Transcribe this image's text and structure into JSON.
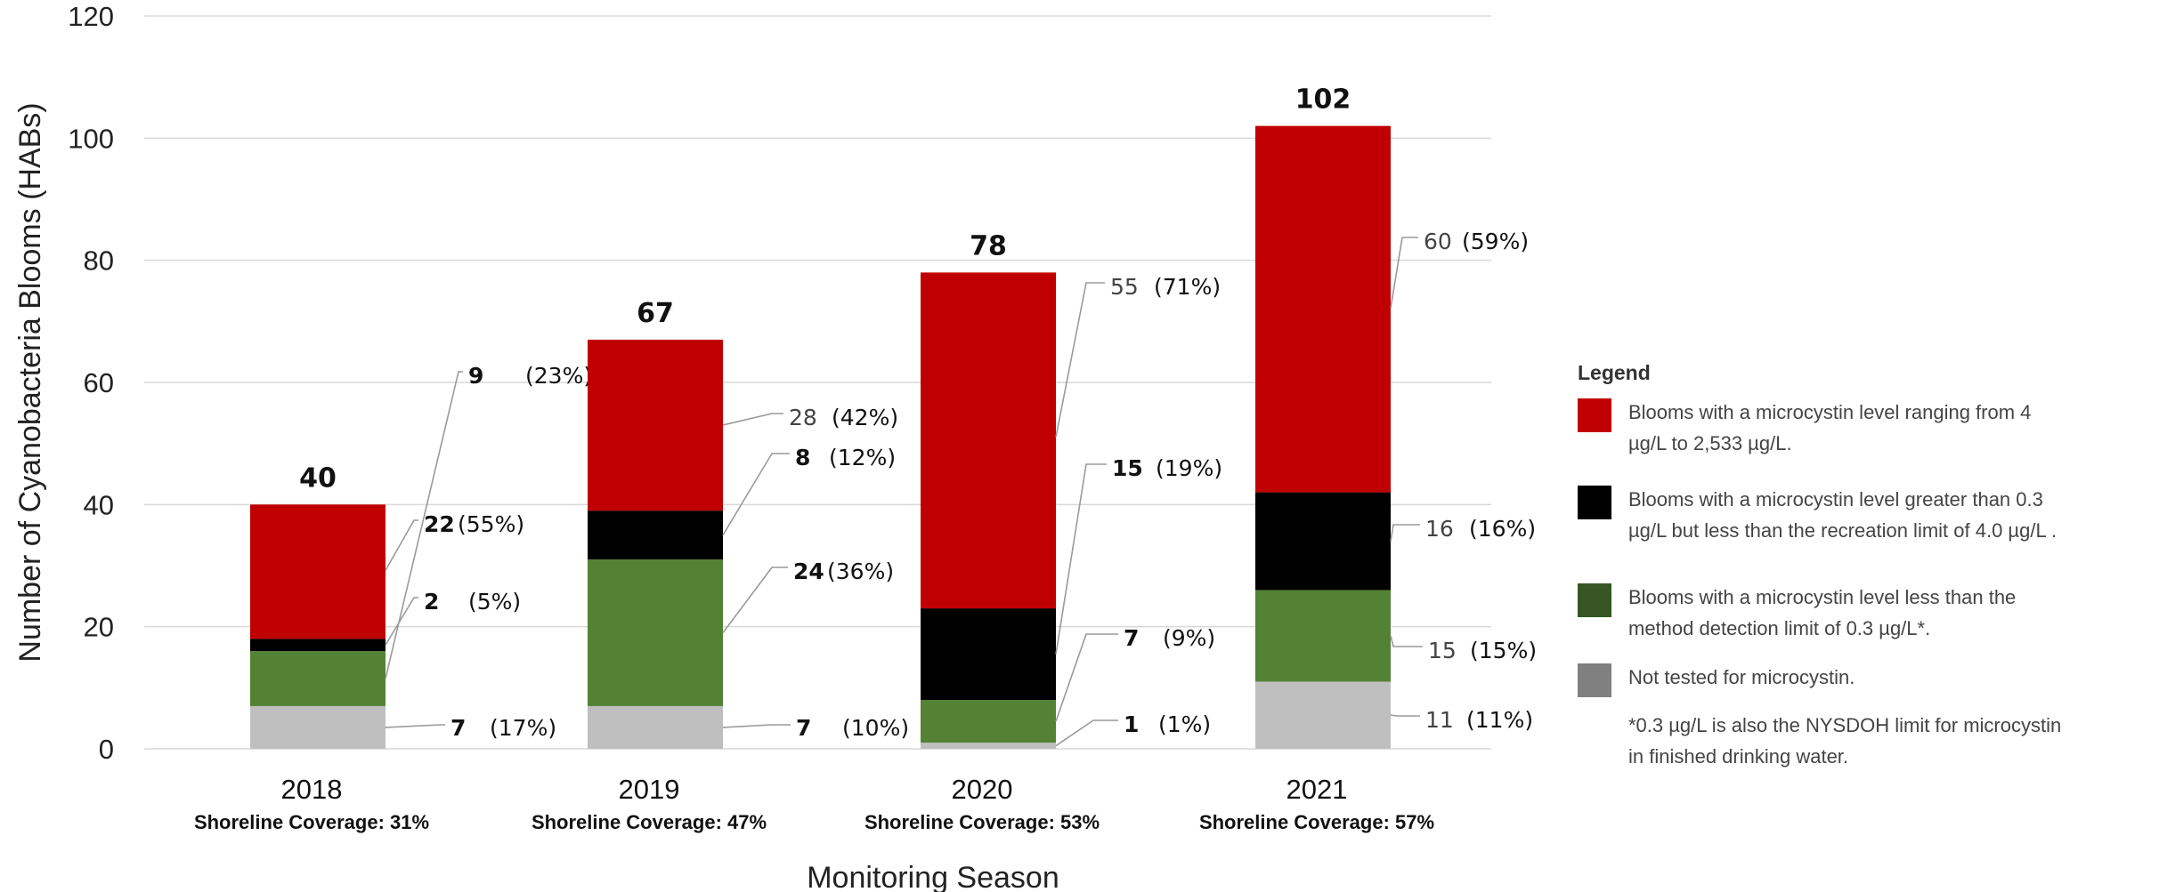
{
  "chart_data": {
    "type": "bar",
    "stacked": true,
    "xlabel": "Monitoring Season",
    "ylabel": "Number of Cyanobacteria Blooms (HABs)",
    "ylim": [
      0,
      120
    ],
    "yticks": [
      0,
      20,
      40,
      60,
      80,
      100,
      120
    ],
    "grid": true,
    "legend_position": "right",
    "categories": [
      "2018",
      "2019",
      "2020",
      "2021"
    ],
    "category_sublabels": [
      "Shoreline Coverage: 31%",
      "Shoreline Coverage: 47%",
      "Shoreline Coverage: 53%",
      "Shoreline Coverage: 57%"
    ],
    "totals": [
      40,
      67,
      78,
      102
    ],
    "series": [
      {
        "key": "not_tested",
        "color": "#bfbfbf",
        "values": [
          7,
          7,
          1,
          11
        ],
        "percents": [
          "(17%)",
          "(10%)",
          "(1%)",
          "(11%)"
        ]
      },
      {
        "key": "below_detection",
        "color": "#548235",
        "values": [
          9,
          24,
          7,
          15
        ],
        "percents": [
          "(23%)",
          "(36%)",
          "(9%)",
          "(15%)"
        ]
      },
      {
        "key": "between_limits",
        "color": "#000000",
        "values": [
          2,
          8,
          15,
          16
        ],
        "percents": [
          "(5%)",
          "(12%)",
          "(19%)",
          "(16%)"
        ]
      },
      {
        "key": "high",
        "color": "#c00000",
        "values": [
          22,
          28,
          55,
          60
        ],
        "percents": [
          "(55%)",
          "(42%)",
          "(71%)",
          "(59%)"
        ]
      }
    ],
    "legend": {
      "title": "Legend",
      "items": [
        {
          "color": "#c00000",
          "lines": [
            "Blooms with a microcystin level ranging from 4",
            "µg/L to 2,533 µg/L."
          ]
        },
        {
          "color": "#000000",
          "lines": [
            "Blooms with a microcystin level greater than 0.3",
            "µg/L but less than the recreation limit of 4.0 µg/L ."
          ]
        },
        {
          "color": "#375623",
          "lines": [
            "Blooms with a microcystin level less than the",
            "method detection limit of 0.3 µg/L*."
          ]
        },
        {
          "color": "#808080",
          "lines": [
            "Not tested for microcystin."
          ]
        }
      ],
      "footnote": [
        "*0.3 µg/L is also the NYSDOH limit for microcystin",
        "in finished drinking water."
      ]
    }
  }
}
